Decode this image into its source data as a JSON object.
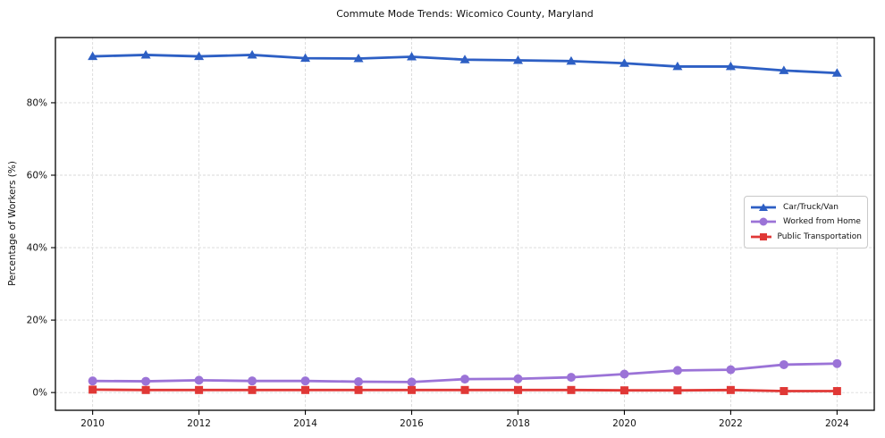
{
  "title": "Commute Mode Trends: Wicomico County, Maryland",
  "chart_data": {
    "type": "line",
    "title": "Commute Mode Trends: Wicomico County, Maryland",
    "xlabel": "",
    "ylabel": "Percentage of Workers (%)",
    "x": [
      2010,
      2011,
      2012,
      2013,
      2014,
      2015,
      2016,
      2017,
      2018,
      2019,
      2020,
      2021,
      2022,
      2023,
      2024
    ],
    "series": [
      {
        "name": "Car/Truck/Van",
        "color": "#2d5fc4",
        "marker": "triangle",
        "values": [
          92.8,
          93.2,
          92.8,
          93.2,
          92.3,
          92.2,
          92.7,
          91.9,
          91.7,
          91.5,
          90.9,
          90.0,
          90.0,
          88.9,
          88.2
        ]
      },
      {
        "name": "Worked from Home",
        "color": "#9b73d7",
        "marker": "circle",
        "values": [
          3.2,
          3.1,
          3.4,
          3.2,
          3.2,
          3.0,
          2.9,
          3.7,
          3.8,
          4.2,
          5.1,
          6.1,
          6.3,
          7.7,
          8.0
        ]
      },
      {
        "name": "Public Transportation",
        "color": "#e03836",
        "marker": "square",
        "values": [
          0.8,
          0.7,
          0.7,
          0.7,
          0.7,
          0.7,
          0.7,
          0.7,
          0.7,
          0.7,
          0.6,
          0.6,
          0.7,
          0.4,
          0.4
        ]
      }
    ],
    "xticks": [
      2010,
      2012,
      2014,
      2016,
      2018,
      2020,
      2022,
      2024
    ],
    "yticks": [
      0,
      20,
      40,
      60,
      80
    ],
    "ytick_labels": [
      "0%",
      "20%",
      "40%",
      "60%",
      "80%"
    ],
    "xlim": [
      2009.3,
      2024.7
    ],
    "ylim": [
      -4.9,
      98.0
    ],
    "grid": true,
    "grid_color": "#d9d9d9",
    "spine_color": "#000000",
    "legend_position": "right-center"
  }
}
